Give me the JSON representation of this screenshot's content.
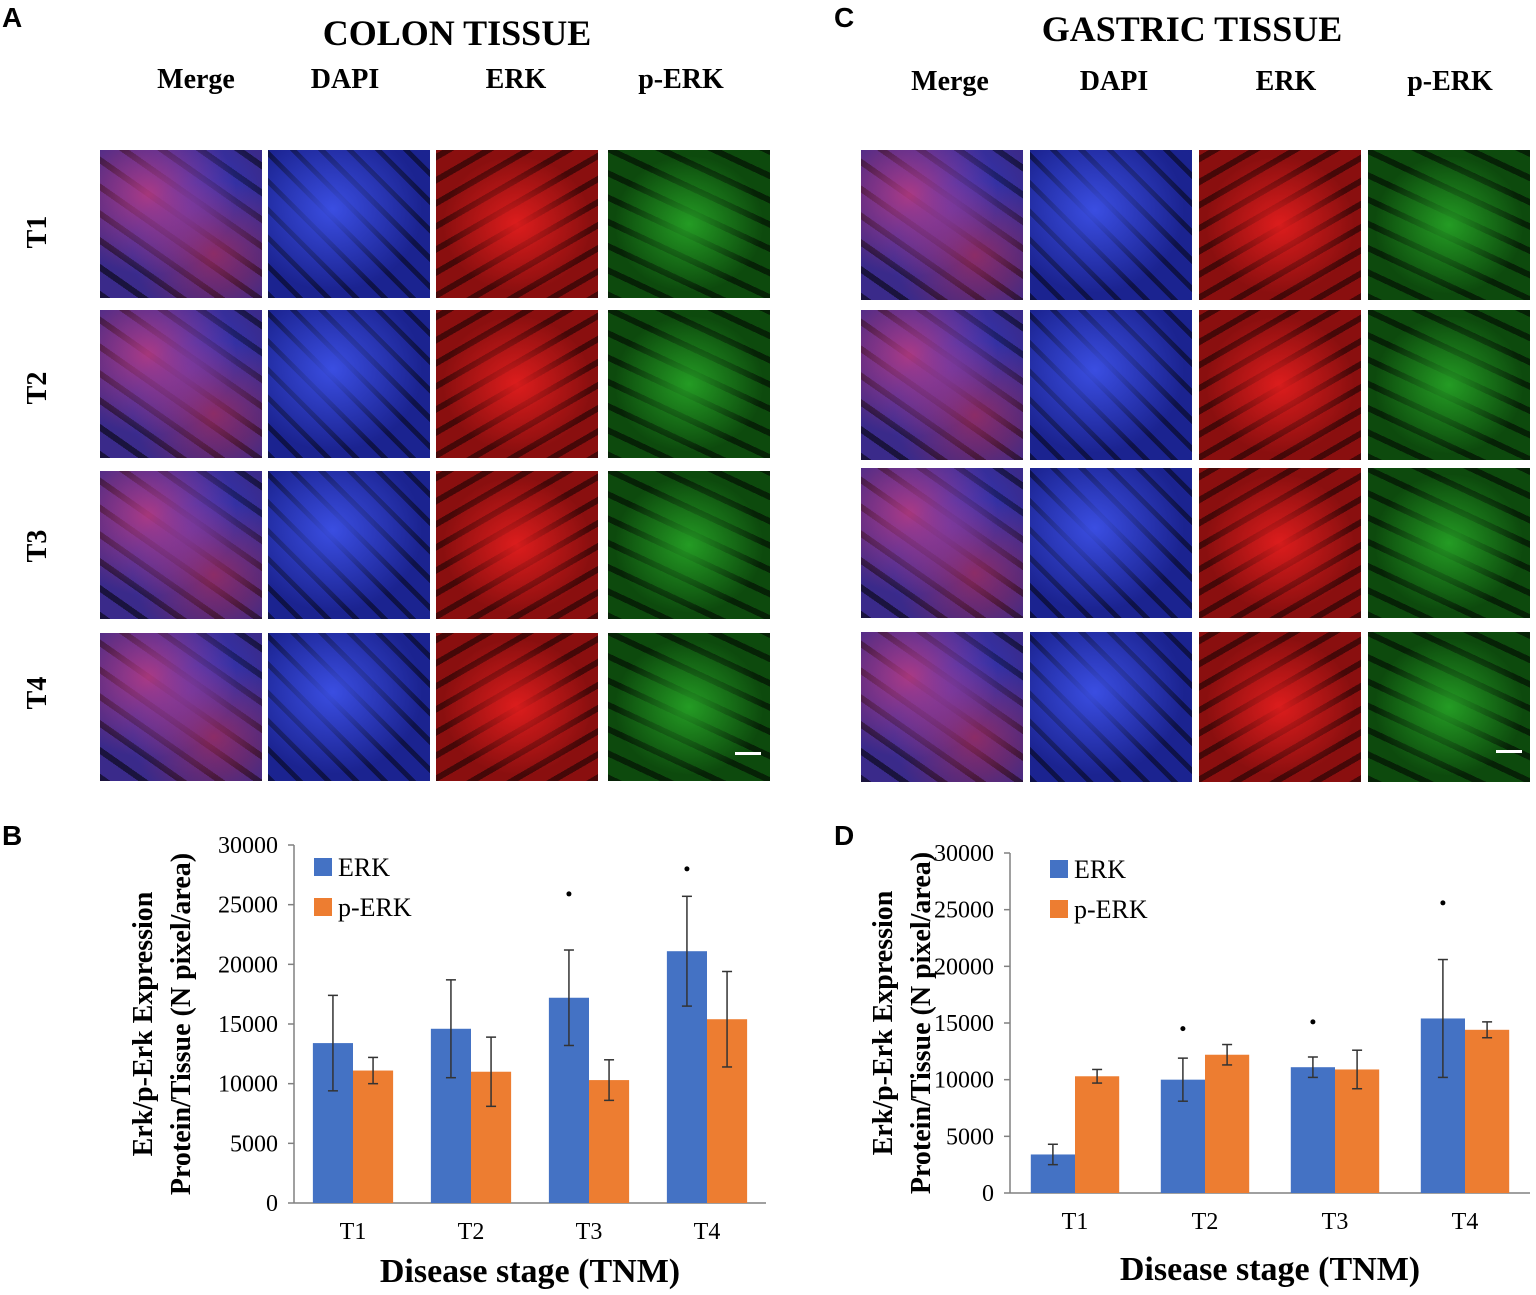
{
  "panel_letters": {
    "a": "A",
    "b": "B",
    "c": "C",
    "d": "D"
  },
  "colon": {
    "title": "COLON TISSUE",
    "columns": [
      "Merge",
      "DAPI",
      "ERK",
      "p-ERK"
    ],
    "rows": [
      "T1",
      "T2",
      "T3",
      "T4"
    ]
  },
  "gastric": {
    "title": "GASTRIC TISSUE",
    "columns": [
      "Merge",
      "DAPI",
      "ERK",
      "p-ERK"
    ]
  },
  "colors": {
    "erk": "#4472C4",
    "perk": "#ED7D31",
    "dapi": "#2430c8",
    "erk_stain": "#d01818",
    "perk_stain": "#10a020"
  },
  "chart_data": [
    {
      "panel": "B",
      "type": "bar",
      "categories": [
        "T1",
        "T2",
        "T3",
        "T4"
      ],
      "series": [
        {
          "name": "ERK",
          "values": [
            13400,
            14600,
            17200,
            21100
          ],
          "errors": [
            4000,
            4100,
            4000,
            4600
          ]
        },
        {
          "name": "p-ERK",
          "values": [
            11100,
            11000,
            10300,
            15400
          ],
          "errors": [
            1100,
            2900,
            1700,
            4000
          ]
        }
      ],
      "significance": [
        {
          "category": "T3",
          "value": 25900
        },
        {
          "category": "T4",
          "value": 28000
        }
      ],
      "ylim": [
        0,
        30000
      ],
      "yticks": [
        "0",
        "5000",
        "10000",
        "15000",
        "20000",
        "25000",
        "30000"
      ],
      "ylabel": [
        "Erk/p-Erk Expression",
        "Protein/Tissue (N pixel/area)"
      ],
      "xlabel": "Disease stage (TNM)",
      "legend": "top-left"
    },
    {
      "panel": "D",
      "type": "bar",
      "categories": [
        "T1",
        "T2",
        "T3",
        "T4"
      ],
      "series": [
        {
          "name": "ERK",
          "values": [
            3400,
            10000,
            11100,
            15400
          ],
          "errors": [
            900,
            1900,
            900,
            5200
          ]
        },
        {
          "name": "p-ERK",
          "values": [
            10300,
            12200,
            10900,
            14400
          ],
          "errors": [
            600,
            900,
            1700,
            700
          ]
        }
      ],
      "significance": [
        {
          "category": "T2",
          "value": 14500
        },
        {
          "category": "T3",
          "value": 15100
        },
        {
          "category": "T4",
          "value": 25600
        }
      ],
      "ylim": [
        0,
        30000
      ],
      "yticks": [
        "0",
        "5000",
        "10000",
        "15000",
        "20000",
        "25000",
        "30000"
      ],
      "ylabel": [
        "Erk/p-Erk Expression",
        "Protein/Tissue (N pixel/area)"
      ],
      "xlabel": "Disease stage (TNM)",
      "legend": "top-left"
    }
  ]
}
